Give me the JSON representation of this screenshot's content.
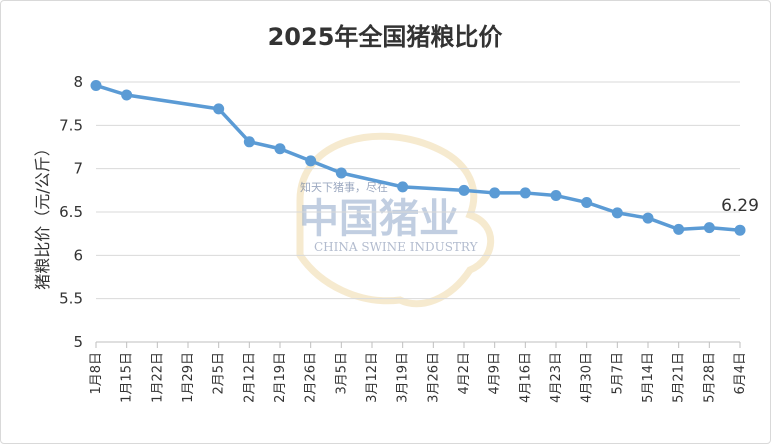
{
  "chart_data": {
    "type": "line",
    "title": "2025年全国猪粮比价",
    "ylabel": "猪粮比价（元/公斤）",
    "xlabel": "",
    "ylim": [
      5,
      8
    ],
    "yticks": [
      "5",
      "5.5",
      "6",
      "6.5",
      "7",
      "7.5",
      "8"
    ],
    "grid": true,
    "categories": [
      "1月8日",
      "1月15日",
      "1月22日",
      "1月29日",
      "2月5日",
      "2月12日",
      "2月19日",
      "2月26日",
      "3月5日",
      "3月12日",
      "3月19日",
      "3月26日",
      "4月2日",
      "4月9日",
      "4月16日",
      "4月23日",
      "4月30日",
      "5月7日",
      "5月14日",
      "5月21日",
      "5月28日",
      "6月4日"
    ],
    "series": [
      {
        "values": [
          7.96,
          7.85,
          null,
          null,
          7.69,
          7.31,
          7.23,
          7.09,
          6.95,
          null,
          6.79,
          null,
          6.75,
          6.72,
          6.72,
          6.69,
          6.61,
          6.49,
          6.43,
          6.3,
          6.32,
          6.29
        ]
      }
    ],
    "annotations": [
      {
        "category": "6月4日",
        "text": "6.29"
      }
    ],
    "line_color": "#5b9bd5"
  },
  "watermark": {
    "brand": "中国猪业",
    "english": "CHINA SWINE INDUSTRY",
    "tagline": "知天下猪事，尽在"
  }
}
